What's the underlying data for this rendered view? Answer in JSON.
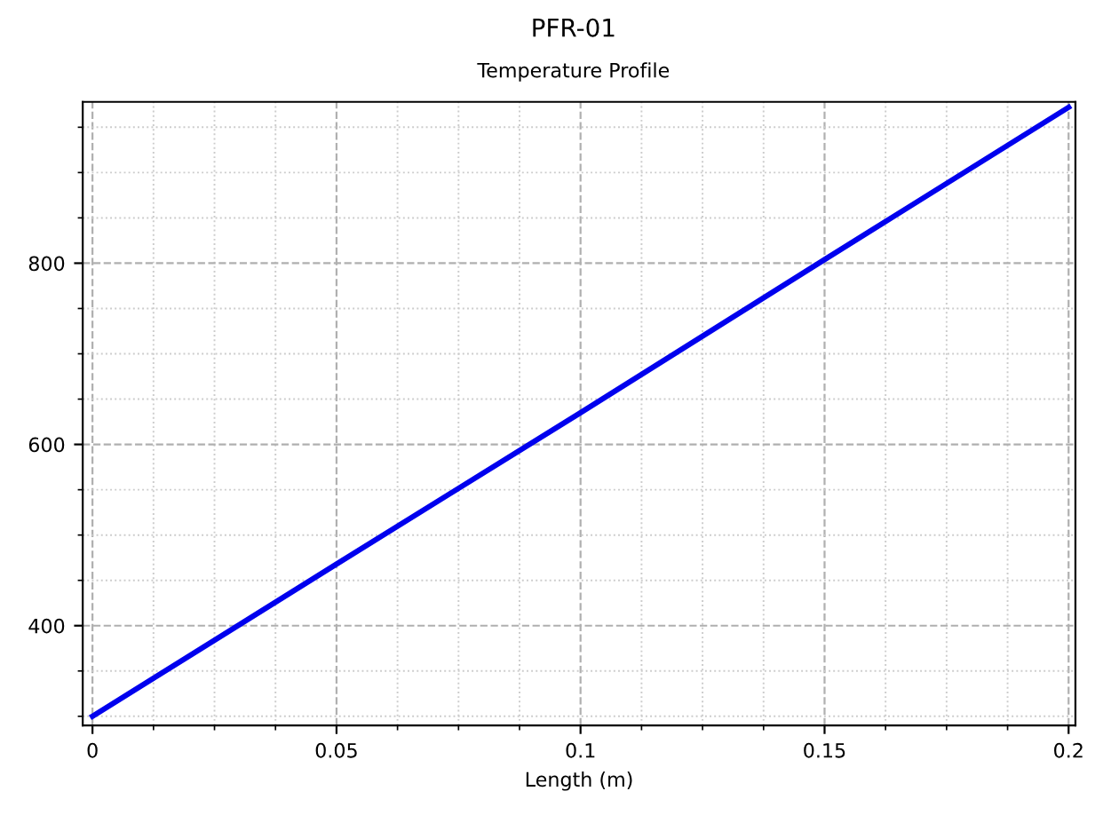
{
  "chart_data": {
    "type": "line",
    "title": "PFR-01",
    "subtitle": "Temperature Profile",
    "xlabel": "Length (m)",
    "x": [
      0,
      0.05,
      0.1,
      0.15,
      0.2
    ],
    "series": [
      {
        "color": "#0000ee",
        "values": [
          300,
          468,
          635,
          804,
          972
        ]
      }
    ],
    "xlim": [
      -0.002,
      0.2014
    ],
    "ylim": [
      290,
      978
    ],
    "xticks": [
      0,
      0.05,
      0.1,
      0.15,
      0.2
    ],
    "yticks": [
      400,
      600,
      800
    ],
    "grid": true,
    "legend": false,
    "marker": "none",
    "line_style": "solid"
  }
}
